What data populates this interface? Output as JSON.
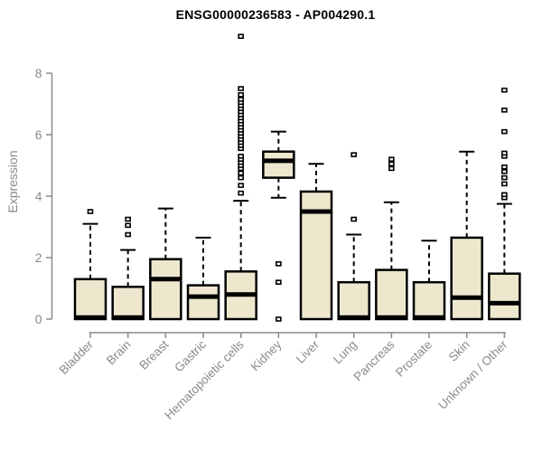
{
  "page": {
    "background": "#ffffff"
  },
  "chart_data": {
    "type": "boxplot",
    "title": "ENSG00000236583 - AP004290.1",
    "ylabel": "Expression",
    "xlabel": "",
    "yticks": [
      0,
      2,
      4,
      6,
      8
    ],
    "ylim": [
      0,
      9.4
    ],
    "grid": false,
    "legend": "none",
    "categories": [
      "Bladder",
      "Brain",
      "Breast",
      "Gastric",
      "Hematopoietic cells",
      "Kidney",
      "Liver",
      "Lung",
      "Pancreas",
      "Prostate",
      "Skin",
      "Unknown / Other"
    ],
    "boxes": [
      {
        "category": "Bladder",
        "whisker_low": 0,
        "q1": 0,
        "median": 0.05,
        "q3": 1.3,
        "whisker_high": 3.1,
        "outliers": [
          3.5
        ]
      },
      {
        "category": "Brain",
        "whisker_low": 0,
        "q1": 0,
        "median": 0.05,
        "q3": 1.05,
        "whisker_high": 2.25,
        "outliers": [
          2.75,
          3.05,
          3.25
        ]
      },
      {
        "category": "Breast",
        "whisker_low": 0,
        "q1": 0,
        "median": 1.3,
        "q3": 1.95,
        "whisker_high": 3.6,
        "outliers": []
      },
      {
        "category": "Gastric",
        "whisker_low": 0,
        "q1": 0,
        "median": 0.73,
        "q3": 1.1,
        "whisker_high": 2.65,
        "outliers": []
      },
      {
        "category": "Hematopoietic cells",
        "whisker_low": 0,
        "q1": 0,
        "median": 0.8,
        "q3": 1.55,
        "whisker_high": 3.85,
        "outliers": [
          4.1,
          4.35,
          4.6,
          4.75,
          4.9,
          5.0,
          5.1,
          5.2,
          5.3,
          5.55,
          5.65,
          5.75,
          5.85,
          5.95,
          6.05,
          6.15,
          6.25,
          6.35,
          6.45,
          6.55,
          6.65,
          6.75,
          6.85,
          6.95,
          7.05,
          7.15,
          7.3,
          7.5,
          9.2
        ]
      },
      {
        "category": "Kidney",
        "whisker_low": 3.95,
        "q1": 4.6,
        "median": 5.15,
        "q3": 5.45,
        "whisker_high": 6.1,
        "outliers": [
          1.8,
          1.2,
          0
        ]
      },
      {
        "category": "Liver",
        "whisker_low": 0,
        "q1": 0,
        "median": 3.5,
        "q3": 4.15,
        "whisker_high": 5.05,
        "outliers": []
      },
      {
        "category": "Lung",
        "whisker_low": 0,
        "q1": 0,
        "median": 0.05,
        "q3": 1.2,
        "whisker_high": 2.75,
        "outliers": [
          3.25,
          5.35
        ]
      },
      {
        "category": "Pancreas",
        "whisker_low": 0,
        "q1": 0,
        "median": 0.05,
        "q3": 1.6,
        "whisker_high": 3.8,
        "outliers": [
          4.9,
          5.05,
          5.2
        ]
      },
      {
        "category": "Prostate",
        "whisker_low": 0,
        "q1": 0,
        "median": 0.05,
        "q3": 1.2,
        "whisker_high": 2.55,
        "outliers": []
      },
      {
        "category": "Skin",
        "whisker_low": 0,
        "q1": 0,
        "median": 0.7,
        "q3": 2.65,
        "whisker_high": 5.45,
        "outliers": []
      },
      {
        "category": "Unknown / Other",
        "whisker_low": 0,
        "q1": 0,
        "median": 0.52,
        "q3": 1.48,
        "whisker_high": 3.75,
        "outliers": [
          3.95,
          4.05,
          4.4,
          4.6,
          4.8,
          4.95,
          5.3,
          5.4,
          6.1,
          6.8,
          7.45
        ]
      }
    ],
    "colors": {
      "box_fill": "#EDE7CE",
      "box_border": "#000000",
      "median": "#000000",
      "whisker": "#000000",
      "outlier_stroke": "#000000",
      "outlier_fill": "#ffffff",
      "axis": "#8a8a8a",
      "tick_label": "#8a8a8a",
      "title": "#000000"
    }
  }
}
